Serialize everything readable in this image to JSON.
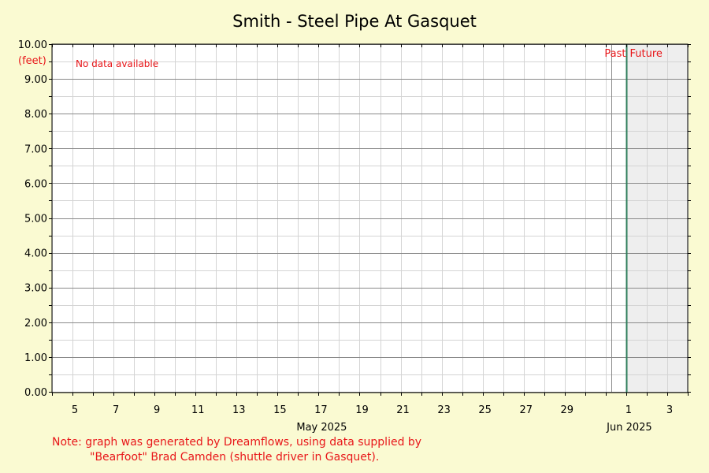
{
  "chart_data": {
    "type": "line",
    "title": "Smith - Steel Pipe At Gasquet",
    "ylabel": "(feet)",
    "ylim": [
      0,
      10
    ],
    "y_ticks": [
      "0.00",
      "1.00",
      "2.00",
      "3.00",
      "4.00",
      "5.00",
      "6.00",
      "7.00",
      "8.00",
      "9.00",
      "10.00"
    ],
    "xlim": [
      "2025-05-04",
      "2025-06-04"
    ],
    "x_tick_labels": [
      {
        "date": "2025-05-05",
        "label": "5"
      },
      {
        "date": "2025-05-07",
        "label": "7"
      },
      {
        "date": "2025-05-09",
        "label": "9"
      },
      {
        "date": "2025-05-11",
        "label": "11"
      },
      {
        "date": "2025-05-13",
        "label": "13"
      },
      {
        "date": "2025-05-15",
        "label": "15"
      },
      {
        "date": "2025-05-17",
        "label": "17"
      },
      {
        "date": "2025-05-19",
        "label": "19"
      },
      {
        "date": "2025-05-21",
        "label": "21"
      },
      {
        "date": "2025-05-23",
        "label": "23"
      },
      {
        "date": "2025-05-25",
        "label": "25"
      },
      {
        "date": "2025-05-27",
        "label": "27"
      },
      {
        "date": "2025-05-29",
        "label": "29"
      },
      {
        "date": "2025-06-01",
        "label": "1"
      },
      {
        "date": "2025-06-03",
        "label": "3"
      }
    ],
    "month_labels": [
      {
        "date": "2025-05-17",
        "label": "May 2025"
      },
      {
        "date": "2025-06-01",
        "label": "Jun 2025"
      }
    ],
    "now_marker": "2025-06-01",
    "past_label": "Past",
    "future_label": "Future",
    "series": [],
    "annotation": "No data available",
    "grid": true
  },
  "note": {
    "line1": "Note: graph was generated by Dreamflows, using data supplied by",
    "line2": "\"Bearfoot\" Brad Camden (shuttle driver in Gasquet)."
  },
  "colors": {
    "background": "#fafad2",
    "plot": "#ffffff",
    "future_shade": "#eeeeee",
    "now_line": "#2e7d5b",
    "text_accent": "#e8171a"
  }
}
